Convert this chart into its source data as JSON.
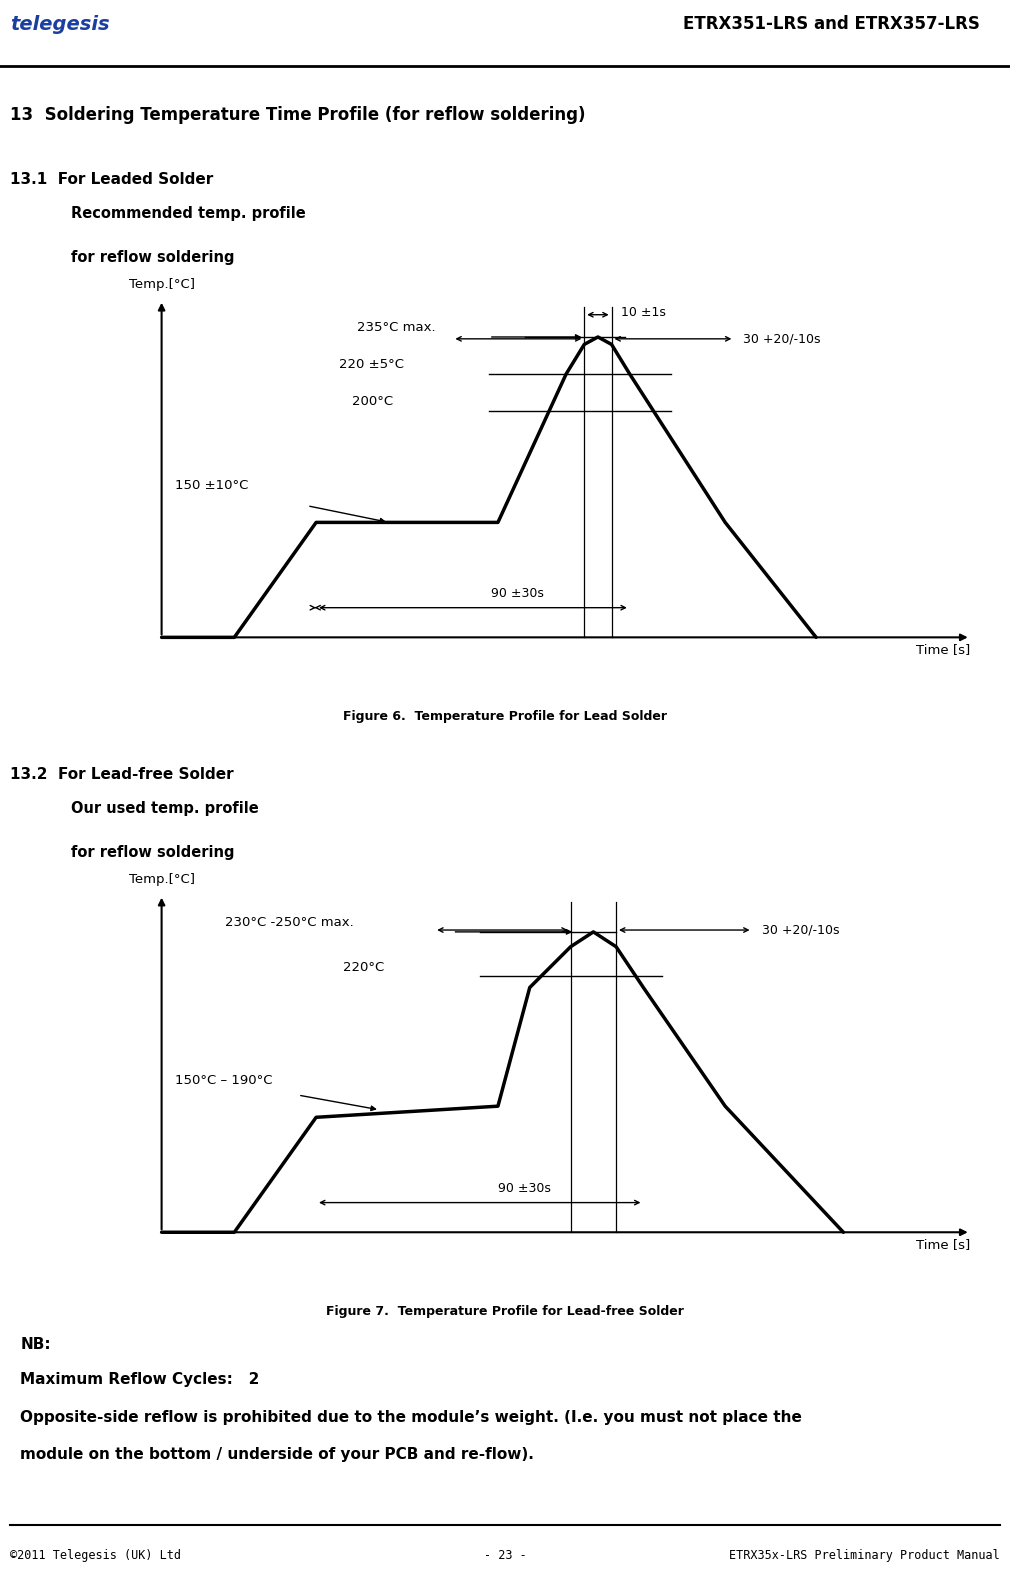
{
  "header_title": "ETRX351-LRS and ETRX357-LRS",
  "section_title": "13  Soldering Temperature Time Profile (for reflow soldering)",
  "section13_1_title": "13.1  For Leaded Solder",
  "section13_2_title": "13.2  For Lead-free Solder",
  "fig6_caption": "Figure 6.  Temperature Profile for Lead Solder",
  "fig7_caption": "Figure 7.  Temperature Profile for Lead-free Solder",
  "chart1_subtitle_line1": "Recommended temp. profile",
  "chart1_subtitle_line2": "for reflow soldering",
  "chart2_subtitle_line1": "Our used temp. profile",
  "chart2_subtitle_line2": "for reflow soldering",
  "xlabel": "Time [s]",
  "ylabel": "Temp.[°C]",
  "nb_line1": "NB:",
  "nb_line2": "Maximum Reflow Cycles:   2",
  "nb_line3": "Opposite-side reflow is prohibited due to the module’s weight. (I.e. you must not place the",
  "nb_line4": "module on the bottom / underside of your PCB and re-flow).",
  "footer_left": "©2011 Telegesis (UK) Ltd",
  "footer_center": "- 23 -",
  "footer_right": "ETRX35x-LRS Preliminary Product Manual",
  "section_bg": "#cce8f4",
  "white": "#ffffff",
  "black": "#000000"
}
